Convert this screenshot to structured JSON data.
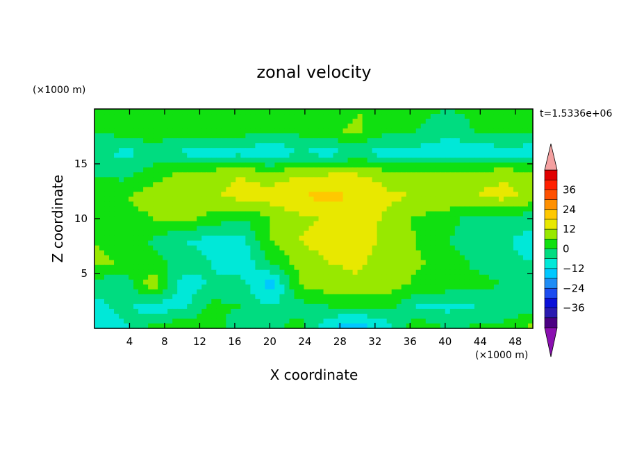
{
  "chart_data": {
    "type": "heatmap",
    "title": "zonal velocity",
    "xlabel": "X coordinate",
    "ylabel": "Z coordinate",
    "x_unit_label": "(×1000 m)",
    "y_unit_label": "(×1000 m)",
    "time_label": "t=1.5336e+06",
    "xlim": [
      0,
      50
    ],
    "ylim": [
      0,
      20
    ],
    "x_ticks": [
      4,
      8,
      12,
      16,
      20,
      24,
      28,
      32,
      36,
      40,
      44,
      48
    ],
    "y_ticks": [
      5,
      10,
      15
    ],
    "x_tick_labels": [
      "4",
      "8",
      "12",
      "16",
      "20",
      "24",
      "28",
      "32",
      "36",
      "40",
      "44",
      "48"
    ],
    "y_tick_labels": [
      "5",
      "10",
      "15"
    ],
    "colorbar": {
      "levels": [
        -42,
        -36,
        -30,
        -24,
        -18,
        -12,
        -6,
        0,
        6,
        12,
        18,
        24,
        30,
        36,
        42
      ],
      "colors": [
        "#4b0082",
        "#2a1ab0",
        "#0a10d8",
        "#1c4cf0",
        "#1e8cf5",
        "#00c8ff",
        "#00e8d8",
        "#00dc80",
        "#10e010",
        "#98e800",
        "#e8e800",
        "#ffc800",
        "#ff9000",
        "#ff5000",
        "#ff2000",
        "#e00000"
      ],
      "over_color": "#f4a0a0",
      "under_color": "#8a10b0",
      "tick_values": [
        36,
        24,
        12,
        0,
        -12,
        -24,
        -36
      ],
      "tick_labels": [
        "36",
        "24",
        "12",
        "0",
        "−12",
        "−24",
        "−36"
      ]
    },
    "field": [
      [
        0,
        1,
        2,
        0,
        4,
        5,
        3,
        0,
        1,
        6,
        3,
        2,
        0,
        1,
        4,
        0
      ],
      [
        0,
        3,
        6,
        2,
        4,
        3,
        0,
        2,
        5,
        7,
        2,
        0,
        -3,
        0,
        2,
        3
      ],
      [
        -4,
        -8,
        -5,
        -7,
        -10,
        -8,
        -12,
        -6,
        -9,
        -4,
        -10,
        -8,
        -11,
        -12,
        -9,
        -11
      ],
      [
        0,
        -2,
        4,
        7,
        10,
        12,
        9,
        11,
        12,
        12,
        10,
        8,
        9,
        10,
        11,
        9
      ],
      [
        4,
        6,
        9,
        10,
        11,
        14,
        15,
        18,
        20,
        17,
        13,
        12,
        11,
        12,
        14,
        10
      ],
      [
        1,
        3,
        6,
        8,
        4,
        0,
        6,
        10,
        13,
        15,
        11,
        5,
        3,
        -3,
        -2,
        -4
      ],
      [
        6,
        3,
        -1,
        -6,
        -8,
        -9,
        6,
        12,
        15,
        14,
        11,
        6,
        0,
        -2,
        -5,
        -9
      ],
      [
        8,
        5,
        2,
        -2,
        -6,
        -11,
        0,
        8,
        12,
        13,
        10,
        7,
        3,
        -1,
        -4,
        -6
      ],
      [
        -2,
        -6,
        12,
        -10,
        -5,
        -3,
        -16,
        6,
        10,
        11,
        9,
        5,
        4,
        2,
        0,
        -2
      ],
      [
        -8,
        -4,
        -10,
        -8,
        2,
        0,
        -6,
        -2,
        0,
        0,
        2,
        -6,
        -8,
        -6,
        -5,
        -3
      ],
      [
        -10,
        -7,
        2,
        6,
        3,
        -4,
        -2,
        3,
        -12,
        -16,
        -10,
        5,
        0,
        1,
        2,
        8
      ]
    ]
  }
}
